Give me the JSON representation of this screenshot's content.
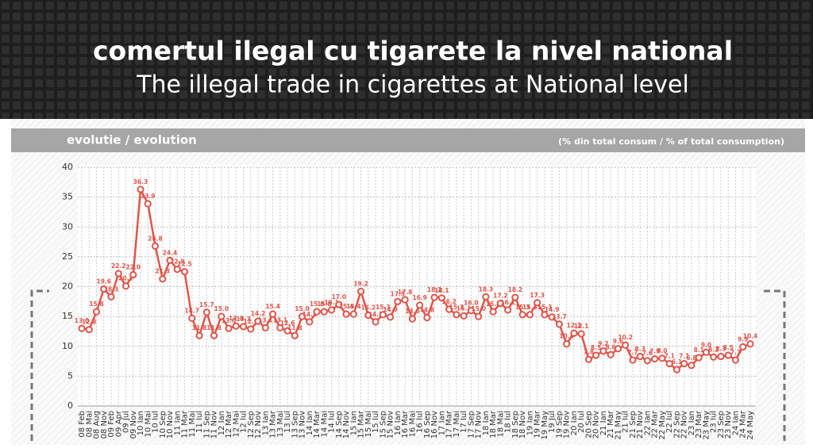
{
  "chart_data": {
    "type": "line",
    "title": "comertul ilegal cu tigarete la nivel national",
    "subtitle": "The illegal trade in cigarettes at National level",
    "section_label": "evolutie / evolution",
    "unit_label": "(% din total consum / % of total consumption)",
    "categories": [
      "08 Feb",
      "08 Mai",
      "08 Aug",
      "08 Nov",
      "09 Feb",
      "09 Apr",
      "09 Jul",
      "09 Nov",
      "10 Ian",
      "10 Mai",
      "10 Iul",
      "10 Sep",
      "10 Nov",
      "11 Ian",
      "11 Mar",
      "11 Mai",
      "11 Iul",
      "11 Sep",
      "11 Nov",
      "12 Ian",
      "12 Mar",
      "12 Mai",
      "12 Iul",
      "12 Sep",
      "12 Nov",
      "13 Ian",
      "13 Mar",
      "13 Mai",
      "13 Iul",
      "13 Sep",
      "13 Nov",
      "14 Ian",
      "14 Mar",
      "14 Mai",
      "14 Iul",
      "14 Sep",
      "14 Nov",
      "15 Ian",
      "15 Mar",
      "15 Mai",
      "15 Iul",
      "15 Sep",
      "15 Nov",
      "16 Ian",
      "16 Mar",
      "16 Mai",
      "16 Iul",
      "16 Sep",
      "16 Nov",
      "17 Ian",
      "17 Mar",
      "17 Mai",
      "17 Iul",
      "17 Sep",
      "17 Nov",
      "18 Ian",
      "18 Mar",
      "18 Mai",
      "18 Iul",
      "18 Sep",
      "18 Nov",
      "19 Ian",
      "19 Mar",
      "19 May",
      "19 Jul",
      "19 Sep",
      "19 Nov",
      "20 Ian",
      "20 Iul",
      "20 Sep",
      "20 Nov",
      "21 Ian",
      "21 Mar",
      "21 May",
      "21 Iul",
      "21 Sep",
      "21 Nov",
      "22 Ian",
      "22 Mar",
      "22 May",
      "22 Iul",
      "22 Sep",
      "22 Nov",
      "23 Ian",
      "23 Mar",
      "23 May",
      "23 Iul",
      "23 Sep",
      "23 Nov",
      "24 Ian",
      "24 Mar",
      "24 May"
    ],
    "values": [
      13.0,
      12.8,
      15.8,
      19.6,
      18.3,
      22.2,
      20.1,
      22.0,
      36.3,
      33.9,
      26.8,
      21.3,
      24.4,
      22.9,
      22.5,
      14.7,
      11.8,
      15.7,
      11.8,
      15.0,
      13.0,
      13.4,
      13.3,
      12.9,
      14.2,
      13.1,
      15.4,
      13.1,
      12.6,
      11.8,
      15.0,
      14.1,
      15.8,
      15.8,
      16.1,
      17.0,
      15.4,
      15.4,
      19.2,
      15.2,
      14.1,
      15.3,
      14.9,
      17.5,
      17.8,
      14.6,
      16.9,
      14.8,
      18.2,
      18.1,
      16.2,
      15.3,
      15.1,
      16.0,
      15.0,
      18.3,
      15.8,
      17.2,
      16.1,
      18.2,
      15.3,
      15.3,
      17.3,
      15.3,
      14.9,
      13.7,
      10.4,
      12.2,
      12.1,
      7.8,
      8.5,
      9.2,
      8.6,
      9.6,
      10.2,
      7.7,
      8.3,
      7.6,
      7.9,
      8.0,
      7.1,
      6.1,
      7.1,
      6.8,
      8.1,
      9.0,
      8.2,
      8.3,
      8.5,
      7.7,
      9.9,
      10.4
    ],
    "value_labels": [
      "13.0",
      "12.8",
      "15.8",
      "19.6",
      "18.3",
      "22.2",
      "20.1",
      "22.0",
      "36.3",
      "33.9",
      "26.8",
      "21.3",
      "24.4",
      "22.9",
      "22.5",
      "14.7",
      "11.8",
      "15.7",
      "11.8",
      "15.0",
      "13.0",
      "13.4",
      "13.3",
      "12.9",
      "14.2",
      "13.1",
      "15.4",
      "13.1",
      "12.6",
      "11.8",
      "15.0",
      "14.1",
      "15.8",
      "15.8",
      "16.1",
      "17.0",
      "15.4",
      "15.4",
      "19.2",
      "15.2",
      "14.1",
      "15.3",
      "14.9",
      "17.5",
      "17.8",
      "14.6",
      "16.9",
      "14.8",
      "18.2",
      "18.1",
      "16.2",
      "15.3",
      "15.1",
      "16.0",
      "15.0",
      "18.3",
      "15.8",
      "17.2",
      "16.1",
      "18.2",
      "15.3",
      "15.3",
      "17.3",
      "15.3",
      "14.9",
      "13.7",
      "10.4",
      "12.2",
      "12.1",
      "7.8",
      "8.5",
      "9.2",
      "8.6",
      "9.6",
      "10.2",
      "7.7",
      "8.3",
      "7.6",
      "7.9",
      "8.0",
      "7.1",
      "6.1",
      "7.1",
      "6.8",
      "8.1",
      "9.0",
      "8.2",
      "8.3",
      "8.5",
      "7.7",
      "9.9",
      "10.4"
    ],
    "color": "#e0554a",
    "ylim": [
      0,
      40
    ],
    "yticks": [
      0,
      5,
      10,
      15,
      20,
      25,
      30,
      35,
      40
    ],
    "grid": true
  }
}
